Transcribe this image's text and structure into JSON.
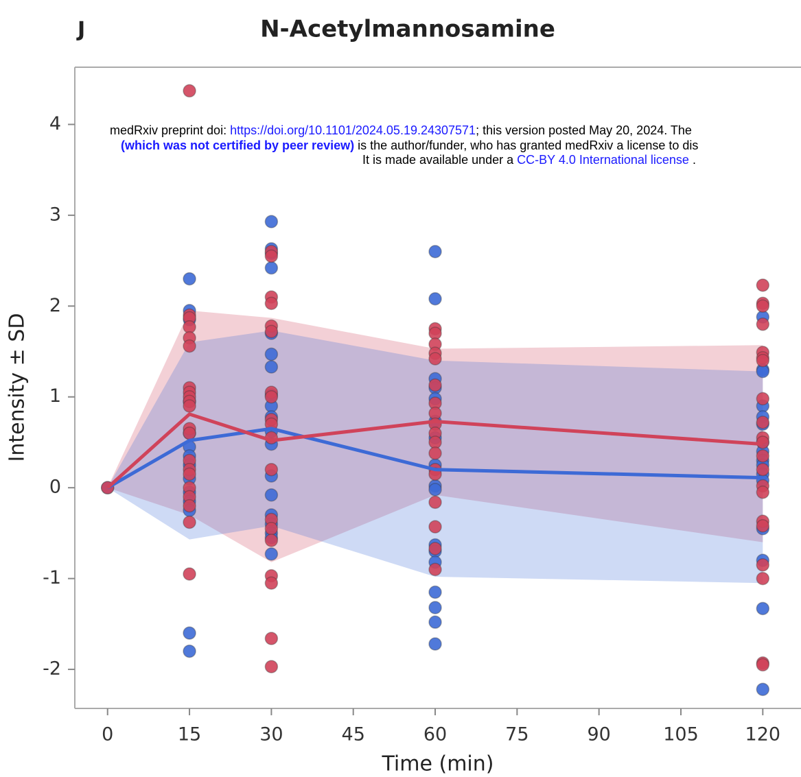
{
  "chart_data": {
    "type": "line",
    "panel_label": "J",
    "title": "N-Acetylmannosamine",
    "x_label": "Time (min)",
    "y_label": "Intensity ± SD",
    "xlim": [
      -6,
      127
    ],
    "ylim": [
      -2.43,
      4.63
    ],
    "xticks": [
      0,
      15,
      30,
      45,
      60,
      75,
      90,
      105,
      120
    ],
    "yticks": [
      -2,
      -1,
      0,
      1,
      2,
      3,
      4
    ],
    "series": [
      {
        "color": "#3d6ad6",
        "x": [
          0,
          15,
          30,
          60,
          120
        ],
        "values": [
          0,
          0.52,
          0.65,
          0.2,
          0.11
        ],
        "upper": [
          0,
          1.6,
          1.73,
          1.4,
          1.28
        ],
        "lower": [
          0,
          -0.57,
          -0.42,
          -0.98,
          -1.05
        ],
        "points": {
          "x": [
            0,
            15,
            15,
            15,
            15,
            15,
            15,
            15,
            15,
            15,
            15,
            15,
            15,
            15,
            15,
            30,
            30,
            30,
            30,
            30,
            30,
            30,
            30,
            30,
            30,
            30,
            30,
            30,
            30,
            30,
            30,
            30,
            30,
            30,
            60,
            60,
            60,
            60,
            60,
            60,
            60,
            60,
            60,
            60,
            60,
            60,
            60,
            60,
            60,
            60,
            60,
            120,
            120,
            120,
            120,
            120,
            120,
            120,
            120,
            120,
            120,
            120,
            120,
            120,
            120,
            120,
            120
          ],
          "values": [
            0,
            2.3,
            1.95,
            1.85,
            0.95,
            0.6,
            0.45,
            0.35,
            0.25,
            0.1,
            -0.05,
            -0.15,
            -0.25,
            -1.6,
            -1.8,
            2.93,
            2.63,
            2.58,
            2.42,
            1.7,
            1.47,
            1.33,
            1.02,
            0.9,
            0.78,
            0.62,
            0.48,
            0.13,
            -0.08,
            -0.3,
            -0.4,
            -0.5,
            -0.55,
            -0.73,
            2.6,
            2.08,
            1.2,
            1.1,
            0.98,
            0.73,
            0.55,
            0.25,
            0.02,
            -0.02,
            -0.63,
            -0.7,
            -0.82,
            -1.15,
            -1.32,
            -1.48,
            -1.72,
            1.88,
            1.3,
            1.28,
            0.9,
            0.78,
            0.7,
            0.5,
            0.4,
            0.3,
            0.25,
            0.15,
            0.08,
            -0.45,
            -0.8,
            -1.33,
            -2.22
          ]
        }
      },
      {
        "color": "#d0435a",
        "x": [
          0,
          15,
          30,
          60,
          120
        ],
        "values": [
          0,
          0.81,
          0.52,
          0.73,
          0.48
        ],
        "upper": [
          0,
          1.95,
          1.87,
          1.53,
          1.57
        ],
        "lower": [
          0,
          -0.3,
          -0.82,
          -0.08,
          -0.6
        ],
        "points": {
          "x": [
            0,
            15,
            15,
            15,
            15,
            15,
            15,
            15,
            15,
            15,
            15,
            15,
            15,
            15,
            15,
            15,
            15,
            15,
            15,
            15,
            15,
            15,
            30,
            30,
            30,
            30,
            30,
            30,
            30,
            30,
            30,
            30,
            30,
            30,
            30,
            30,
            30,
            30,
            30,
            30,
            30,
            60,
            60,
            60,
            60,
            60,
            60,
            60,
            60,
            60,
            60,
            60,
            60,
            60,
            60,
            60,
            60,
            60,
            60,
            120,
            120,
            120,
            120,
            120,
            120,
            120,
            120,
            120,
            120,
            120,
            120,
            120,
            120,
            120,
            120,
            120,
            120,
            120,
            120,
            120
          ],
          "values": [
            0,
            4.37,
            1.9,
            1.87,
            1.77,
            1.65,
            1.56,
            1.1,
            1.05,
            1.0,
            0.95,
            0.9,
            0.65,
            0.6,
            0.3,
            0.2,
            0.15,
            0.0,
            -0.1,
            -0.2,
            -0.38,
            -0.95,
            2.6,
            2.55,
            2.1,
            2.03,
            1.78,
            1.72,
            1.05,
            1.0,
            0.75,
            0.7,
            0.55,
            0.2,
            -0.35,
            -0.45,
            -0.58,
            -0.97,
            -1.05,
            -1.66,
            -1.97,
            1.75,
            1.7,
            1.58,
            1.48,
            1.42,
            1.13,
            0.93,
            0.82,
            0.7,
            0.6,
            0.5,
            0.38,
            0.2,
            0.15,
            -0.16,
            -0.43,
            -0.67,
            -0.9,
            2.23,
            2.03,
            2.0,
            1.8,
            1.49,
            1.43,
            1.4,
            0.98,
            0.72,
            0.55,
            0.5,
            0.35,
            0.2,
            0.02,
            -0.05,
            -0.37,
            -0.42,
            -0.85,
            -1.0,
            -1.93,
            -1.95
          ]
        }
      }
    ]
  },
  "watermark": {
    "lines": [
      [
        "medRxiv preprint doi: ",
        "https://doi.org/10.1101/2024.05.19.24307571",
        "; this version posted May 20, 2024. The"
      ],
      [
        "(which was not certified by peer review)",
        " is the author/funder, who has granted medRxiv a license to dis"
      ],
      [
        "It is made available under a ",
        "CC-BY 4.0 International license",
        " ."
      ]
    ]
  }
}
